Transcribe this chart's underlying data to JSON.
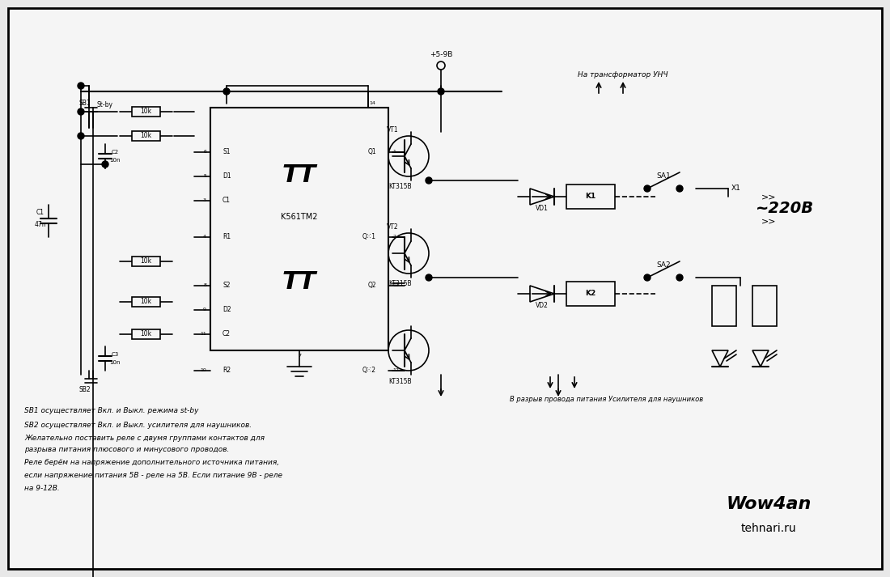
{
  "bg_color": "#f0f0f0",
  "border_color": "#000000",
  "line_color": "#000000",
  "text_color": "#000000",
  "title": "",
  "footnote_line1": "SB1 осуществляет Вкл. и Выкл. режима st-by",
  "footnote_line2": "SB2 осуществляет Вкл. и Выкл. усилителя для наушников.",
  "footnote_line3": "Желательно поставить реле с двумя группами контактов для",
  "footnote_line4": "разрыва питания плюсового и минусового проводов.",
  "footnote_line5": "Реле берём на напряжение дополнительного источника питания,",
  "footnote_line6": "если напряжение питания 5В - реле на 5В. Если питание 9В - реле",
  "footnote_line7": "на 9-12В.",
  "footnote2_line1": "В разрыв провода питания Усилителя для наушников",
  "author": "Wow4an",
  "site": "tehnari.ru"
}
